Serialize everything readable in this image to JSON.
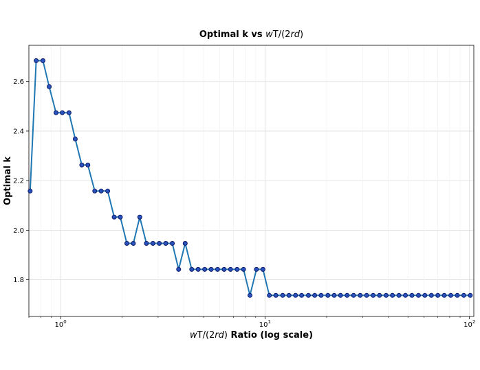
{
  "chart_data": {
    "type": "line",
    "title_main": "Optimal k vs ",
    "title_math": [
      "w",
      "T/(2",
      "rd",
      ")"
    ],
    "xlabel_math": [
      "w",
      "T/(2",
      "rd",
      ")"
    ],
    "xlabel_rest": " Ratio (log scale)",
    "ylabel": "Optimal k",
    "xscale": "log",
    "xlim": [
      0.7,
      105
    ],
    "ylim": [
      1.652,
      2.746
    ],
    "xticks": [
      {
        "value": 1,
        "base": "10",
        "exp": "0"
      },
      {
        "value": 10,
        "base": "10",
        "exp": "1"
      },
      {
        "value": 100,
        "base": "10",
        "exp": "2"
      }
    ],
    "yticks": [
      1.8,
      2.0,
      2.2,
      2.4,
      2.6
    ],
    "grid": true,
    "line_color": "#1f77b4",
    "marker_face": "#2a52be",
    "marker_edge": "#0b1a66",
    "series": [
      {
        "x": [
          0.71,
          0.76,
          0.82,
          0.88,
          0.95,
          1.02,
          1.1,
          1.18,
          1.27,
          1.36,
          1.47,
          1.58,
          1.7,
          1.83,
          1.96,
          2.11,
          2.27,
          2.44,
          2.63,
          2.83,
          3.04,
          3.27,
          3.52,
          3.78,
          4.07,
          4.38,
          4.71,
          5.07,
          5.45,
          5.86,
          6.31,
          6.78,
          7.3,
          7.85,
          8.44,
          9.08,
          9.77,
          10.5,
          11.3,
          12.2,
          13.1,
          14.1,
          15.1,
          16.3,
          17.5,
          18.8,
          20.3,
          21.8,
          23.4,
          25.2,
          27.1,
          29.2,
          31.4,
          33.8,
          36.3,
          39.1,
          42.0,
          45.2,
          48.6,
          52.3,
          56.3,
          60.5,
          65.1,
          70.0,
          75.3,
          81.0,
          87.2,
          93.8,
          100.9
        ],
        "y": [
          2.158,
          2.684,
          2.684,
          2.579,
          2.474,
          2.474,
          2.474,
          2.368,
          2.263,
          2.263,
          2.158,
          2.158,
          2.158,
          2.053,
          2.053,
          1.947,
          1.947,
          2.053,
          1.947,
          1.947,
          1.947,
          1.947,
          1.947,
          1.842,
          1.947,
          1.842,
          1.842,
          1.842,
          1.842,
          1.842,
          1.842,
          1.842,
          1.842,
          1.842,
          1.737,
          1.842,
          1.842,
          1.737,
          1.737,
          1.737,
          1.737,
          1.737,
          1.737,
          1.737,
          1.737,
          1.737,
          1.737,
          1.737,
          1.737,
          1.737,
          1.737,
          1.737,
          1.737,
          1.737,
          1.737,
          1.737,
          1.737,
          1.737,
          1.737,
          1.737,
          1.737,
          1.737,
          1.737,
          1.737,
          1.737,
          1.737,
          1.737,
          1.737,
          1.737
        ]
      }
    ]
  }
}
